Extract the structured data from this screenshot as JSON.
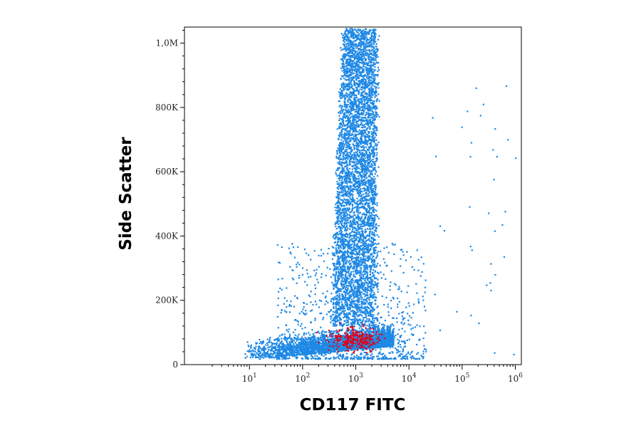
{
  "chart_data": {
    "type": "scatter",
    "xlabel": "CD117 FITC",
    "ylabel": "Side Scatter",
    "x_scale": "log",
    "xlim": [
      0.6,
      1300000
    ],
    "ylim": [
      0,
      1050000
    ],
    "x_ticks": [
      {
        "value": 10,
        "base": "10",
        "exp": "1"
      },
      {
        "value": 100,
        "base": "10",
        "exp": "2"
      },
      {
        "value": 1000,
        "base": "10",
        "exp": "3"
      },
      {
        "value": 10000,
        "base": "10",
        "exp": "4"
      },
      {
        "value": 100000,
        "base": "10",
        "exp": "5"
      },
      {
        "value": 1000000,
        "base": "10",
        "exp": "6"
      }
    ],
    "y_ticks": [
      {
        "value": 0,
        "label": "0"
      },
      {
        "value": 200000,
        "label": "200K"
      },
      {
        "value": 400000,
        "label": "400K"
      },
      {
        "value": 600000,
        "label": "600K"
      },
      {
        "value": 800000,
        "label": "800K"
      },
      {
        "value": 1000000,
        "label": "1,0M"
      }
    ],
    "grid": false,
    "series": [
      {
        "color": "#1e88e5",
        "populations": [
          {
            "kind": "column",
            "x_log_range": [
              2.4,
              3.6
            ],
            "y_range": [
              120000,
              1050000
            ],
            "density": "high"
          },
          {
            "kind": "base",
            "x_log_range": [
              0.9,
              3.7
            ],
            "y_range": [
              10000,
              120000
            ],
            "density": "high"
          },
          {
            "kind": "spread",
            "x_log_range": [
              1.5,
              4.3
            ],
            "y_range": [
              20000,
              380000
            ],
            "density": "sparse"
          }
        ]
      },
      {
        "color": "#e0001a",
        "populations": [
          {
            "kind": "cluster",
            "center": [
              900,
              85000
            ],
            "x_log_spread": 0.3,
            "y_spread": 30000,
            "count": 260
          }
        ]
      }
    ]
  }
}
